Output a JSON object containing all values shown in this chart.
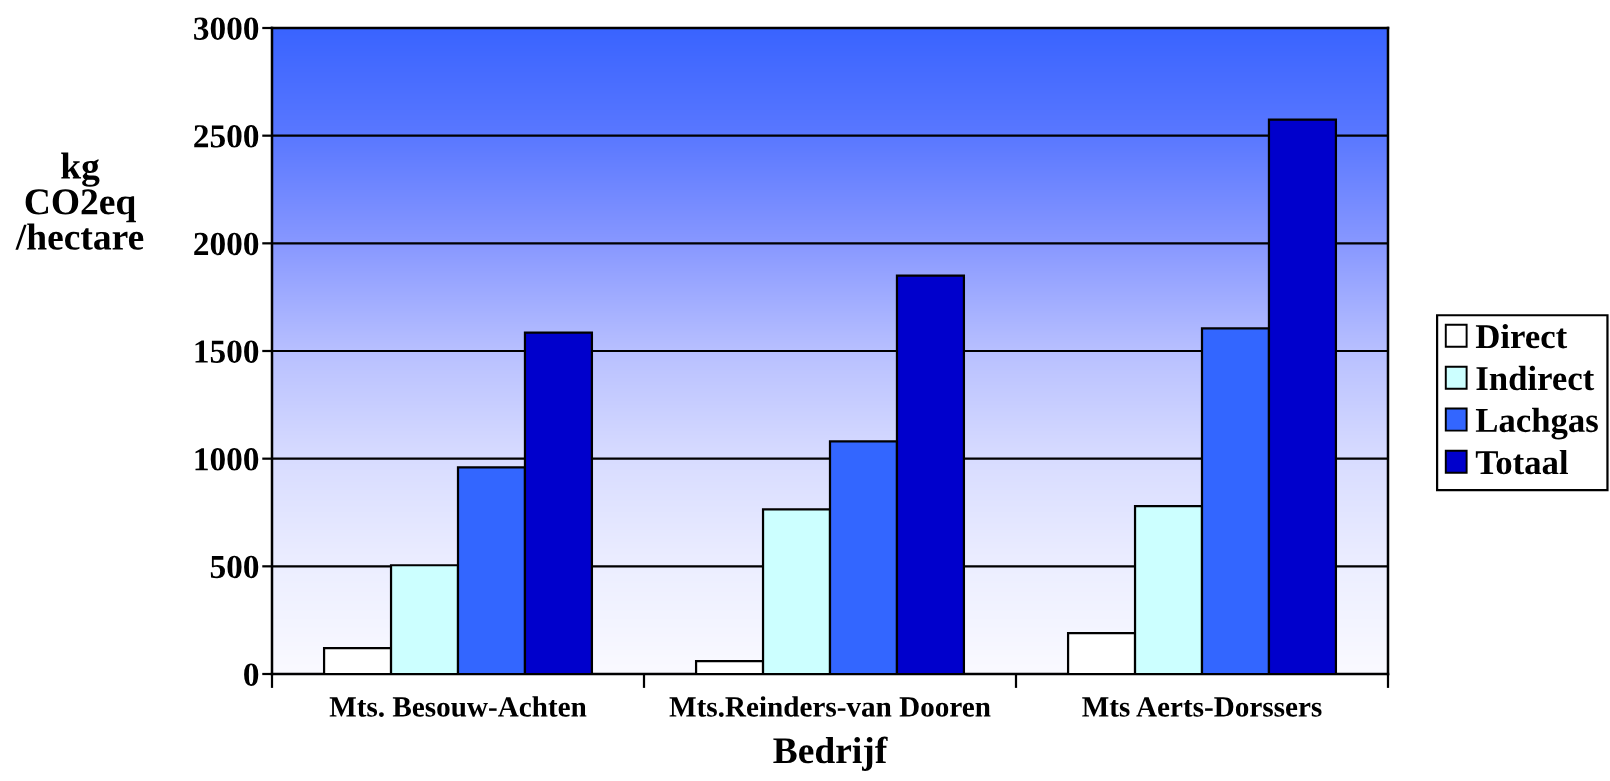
{
  "chart_data": {
    "type": "bar",
    "xlabel": "Bedrijf",
    "ylabel": "kg\nCO2eq\n/hectare",
    "categories": [
      "Mts. Besouw-Achten",
      "Mts.Reinders-van Dooren",
      "Mts Aerts-Dorssers"
    ],
    "series": [
      {
        "name": "Direct",
        "color": "#ffffff",
        "values": [
          120,
          60,
          190
        ]
      },
      {
        "name": "Indirect",
        "color": "#ccffff",
        "values": [
          505,
          765,
          780
        ]
      },
      {
        "name": "Lachgas",
        "color": "#3366ff",
        "values": [
          960,
          1080,
          1605
        ]
      },
      {
        "name": "Totaal",
        "color": "#0000cc",
        "values": [
          1585,
          1850,
          2575
        ]
      }
    ],
    "ylim": [
      0,
      3000
    ],
    "yticks": [
      0,
      500,
      1000,
      1500,
      2000,
      2500,
      3000
    ],
    "grid": "y",
    "legend": "right"
  }
}
